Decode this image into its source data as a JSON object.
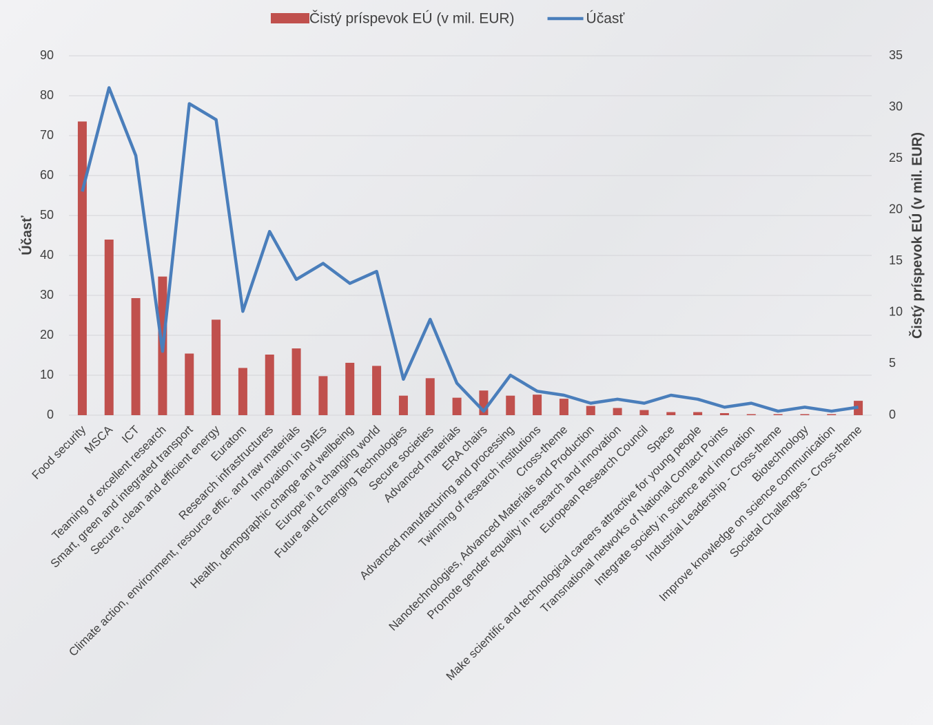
{
  "chart_data": {
    "type": "combo",
    "categories": [
      "Food security",
      "MSCA",
      "ICT",
      "Teaming of excellent research",
      "Smart, green and integrated transport",
      "Secure, clean and efficient energy",
      "Euratom",
      "Research infrastructures",
      "Climate action, environment, resource effic. and raw materials",
      "Innovation in SMEs",
      "Health, demographic change and wellbeing",
      "Europe in a changing world",
      "Future and Emerging Technologies",
      "Secure societies",
      "Advanced materials",
      "ERA chairs",
      "Advanced manufacturing and processing",
      "Twinning of research institutions",
      "Cross-theme",
      "Nanotechnologies, Advanced Materials and Production",
      "Promote gender equality in research and innovation",
      "European Research Council",
      "Space",
      "Make scientific and technological careers attractive for young people",
      "Transnational networks of National Contact Points",
      "Integrate society in science and innovation",
      "Industrial Leadership - Cross-theme",
      "Biotechnology",
      "Improve knowledge on science communication",
      "Societal Challenges - Cross-theme"
    ],
    "series": [
      {
        "name": "Čistý príspevok EÚ (v mil. EUR)",
        "type": "bar",
        "axis": "y2",
        "color": "#c0504d",
        "values": [
          28.6,
          17.1,
          11.4,
          13.5,
          6.0,
          9.3,
          4.6,
          5.9,
          6.5,
          3.8,
          5.1,
          4.8,
          1.9,
          3.6,
          1.7,
          2.4,
          1.9,
          2.0,
          1.6,
          0.9,
          0.7,
          0.5,
          0.3,
          0.3,
          0.2,
          0.1,
          0.1,
          0.1,
          0.1,
          1.4
        ]
      },
      {
        "name": "Účasť",
        "type": "line",
        "axis": "y",
        "color": "#4a7ebb",
        "values": [
          56,
          82,
          65,
          16,
          78,
          74,
          26,
          46,
          34,
          38,
          33,
          36,
          9,
          24,
          8,
          1,
          10,
          6,
          5,
          3,
          4,
          3,
          5,
          4,
          2,
          3,
          1,
          2,
          1,
          2
        ]
      }
    ],
    "ylabel": "Účasť",
    "y2label": "Čistý príspevok EÚ (v mil. EUR)",
    "ylim": [
      0,
      90
    ],
    "yticks": [
      0,
      10,
      20,
      30,
      40,
      50,
      60,
      70,
      80,
      90
    ],
    "y2lim": [
      0,
      35
    ],
    "y2ticks": [
      0,
      5,
      10,
      15,
      20,
      25,
      30,
      35
    ],
    "grid": true,
    "legend": "top"
  }
}
